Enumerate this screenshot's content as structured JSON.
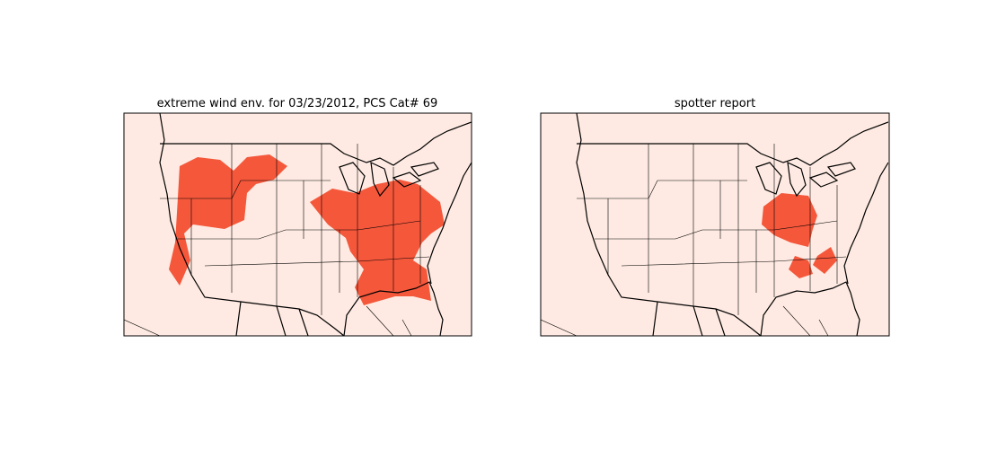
{
  "panels": [
    {
      "title": "extreme wind env. for 03/23/2012, PCS Cat# 69"
    },
    {
      "title": "spotter report"
    }
  ]
}
